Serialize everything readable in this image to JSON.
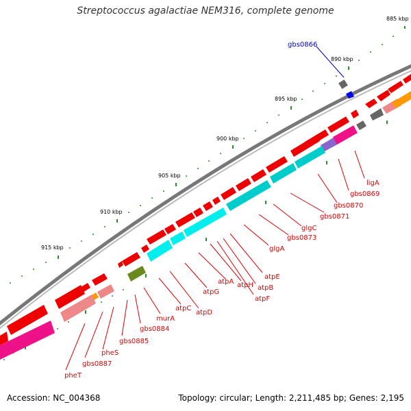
{
  "title": "Streptococcus agalactiae NEM316, complete genome",
  "footer": {
    "accession": "Accession: NC_004368",
    "summary": "Topology: circular; Length: 2,211,485 bp; Genes: 2,195"
  },
  "colors": {
    "backbone": "#888888",
    "tick": "#1a7a1a",
    "forward_cds": "#ee0000",
    "reverse_cds": "#00e0e0",
    "pink_cds": "#ee1188",
    "salmon_cds": "#ee8888",
    "olive_cds": "#6a8a20",
    "orange_cds": "#ff9900",
    "gray_cds": "#666666",
    "blue_cds": "#0000ee",
    "label_red": "#dd0000",
    "label_blue": "#0000cc"
  },
  "kbp_labels": [
    "885 kbp",
    "890 kbp",
    "895 kbp",
    "900 kbp",
    "905 kbp",
    "910 kbp",
    "915 kbp"
  ],
  "gene_labels": [
    {
      "text": "gbs0866",
      "color": "label_blue"
    },
    {
      "text": "ligA",
      "color": "label_red"
    },
    {
      "text": "gbs0869",
      "color": "label_red"
    },
    {
      "text": "gbs0870",
      "color": "label_red"
    },
    {
      "text": "gbs0871",
      "color": "label_red"
    },
    {
      "text": "glgC",
      "color": "label_red"
    },
    {
      "text": "gbs0873",
      "color": "label_red"
    },
    {
      "text": "glgA",
      "color": "label_red"
    },
    {
      "text": "atpE",
      "color": "label_red"
    },
    {
      "text": "atpB",
      "color": "label_red"
    },
    {
      "text": "atpF",
      "color": "label_red"
    },
    {
      "text": "atpH",
      "color": "label_red"
    },
    {
      "text": "atpA",
      "color": "label_red"
    },
    {
      "text": "atpG",
      "color": "label_red"
    },
    {
      "text": "atpD",
      "color": "label_red"
    },
    {
      "text": "atpC",
      "color": "label_red"
    },
    {
      "text": "murA",
      "color": "label_red"
    },
    {
      "text": "gbs0884",
      "color": "label_red"
    },
    {
      "text": "gbs0885",
      "color": "label_red"
    },
    {
      "text": "pheS",
      "color": "label_red"
    },
    {
      "text": "gbs0887",
      "color": "label_red"
    },
    {
      "text": "pheT",
      "color": "label_red"
    }
  ]
}
